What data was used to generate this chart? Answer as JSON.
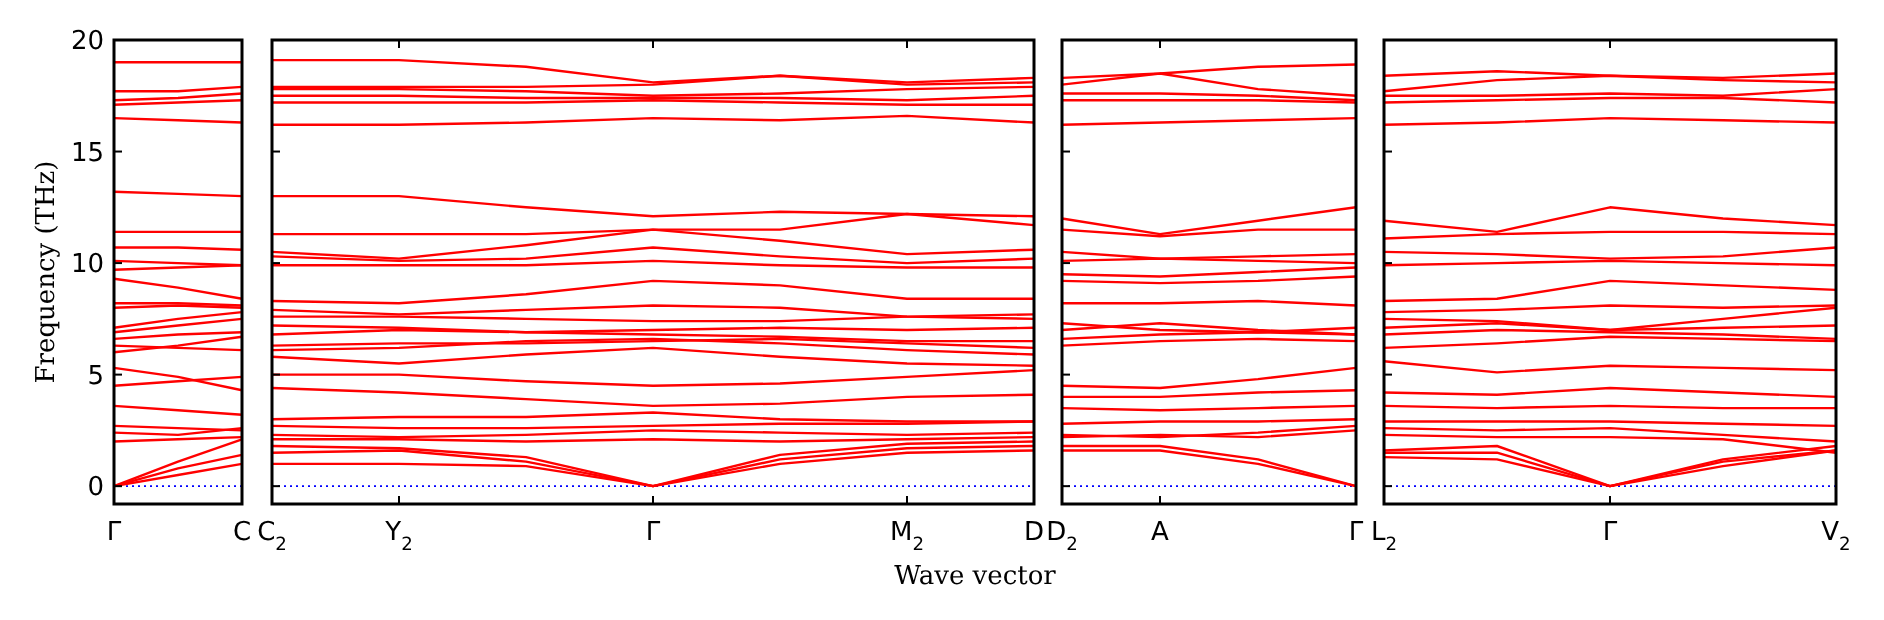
{
  "chart_data": [
    {
      "type": "line",
      "ylabel": "Frequency (THz)",
      "ylim": [
        -0.8,
        20
      ],
      "yticks": [
        0,
        5,
        10,
        15,
        20
      ],
      "categories": [
        "Γ",
        null,
        "C"
      ],
      "grid": false,
      "line_style": "solid",
      "ref_lines": [
        {
          "axis": "y",
          "value": 0,
          "label": null,
          "color": "#0000ff",
          "line_style": "dotted"
        }
      ],
      "series": [
        {
          "color": "#ff0000",
          "values": [
            0,
            0.5,
            1.0
          ]
        },
        {
          "color": "#ff0000",
          "values": [
            0,
            0.8,
            1.4
          ]
        },
        {
          "color": "#ff0000",
          "values": [
            0,
            1.1,
            2.1
          ]
        },
        {
          "color": "#ff0000",
          "values": [
            2.0,
            2.1,
            2.2
          ]
        },
        {
          "color": "#ff0000",
          "values": [
            2.4,
            2.3,
            2.6
          ]
        },
        {
          "color": "#ff0000",
          "values": [
            2.7,
            2.6,
            2.5
          ]
        },
        {
          "color": "#ff0000",
          "values": [
            3.6,
            3.4,
            3.2
          ]
        },
        {
          "color": "#ff0000",
          "values": [
            4.5,
            4.7,
            4.9
          ]
        },
        {
          "color": "#ff0000",
          "values": [
            5.3,
            4.9,
            4.3
          ]
        },
        {
          "color": "#ff0000",
          "values": [
            6.0,
            6.3,
            6.7
          ]
        },
        {
          "color": "#ff0000",
          "values": [
            6.3,
            6.2,
            6.1
          ]
        },
        {
          "color": "#ff0000",
          "values": [
            6.6,
            6.8,
            6.9
          ]
        },
        {
          "color": "#ff0000",
          "values": [
            6.9,
            7.2,
            7.5
          ]
        },
        {
          "color": "#ff0000",
          "values": [
            7.1,
            7.5,
            7.8
          ]
        },
        {
          "color": "#ff0000",
          "values": [
            8.0,
            8.1,
            8.0
          ]
        },
        {
          "color": "#ff0000",
          "values": [
            8.2,
            8.2,
            8.1
          ]
        },
        {
          "color": "#ff0000",
          "values": [
            9.3,
            8.9,
            8.4
          ]
        },
        {
          "color": "#ff0000",
          "values": [
            9.7,
            9.8,
            9.9
          ]
        },
        {
          "color": "#ff0000",
          "values": [
            10.1,
            10.0,
            9.9
          ]
        },
        {
          "color": "#ff0000",
          "values": [
            10.7,
            10.7,
            10.6
          ]
        },
        {
          "color": "#ff0000",
          "values": [
            11.4,
            11.4,
            11.4
          ]
        },
        {
          "color": "#ff0000",
          "values": [
            13.2,
            13.1,
            13.0
          ]
        },
        {
          "color": "#ff0000",
          "values": [
            16.5,
            16.4,
            16.3
          ]
        },
        {
          "color": "#ff0000",
          "values": [
            17.1,
            17.2,
            17.3
          ]
        },
        {
          "color": "#ff0000",
          "values": [
            17.3,
            17.4,
            17.6
          ]
        },
        {
          "color": "#ff0000",
          "values": [
            17.7,
            17.7,
            17.9
          ]
        },
        {
          "color": "#ff0000",
          "values": [
            19.0,
            19.0,
            19.0
          ]
        }
      ]
    },
    {
      "type": "line",
      "xlabel": "Wave vector",
      "ylim": [
        -0.8,
        20
      ],
      "yticks": [
        0,
        5,
        10,
        15,
        20
      ],
      "categories": [
        "C$_{2}$",
        "Y$_{2}$",
        null,
        "Γ",
        null,
        "M$_{2}$",
        "D"
      ],
      "tick_labels": "x",
      "grid": false,
      "line_style": "solid",
      "ref_lines": [
        {
          "axis": "y",
          "value": 0,
          "label": null,
          "color": "#0000ff",
          "line_style": "dotted"
        }
      ],
      "series": [
        {
          "color": "#ff0000",
          "values": [
            1.0,
            1.0,
            0.9,
            0.0,
            1.0,
            1.5,
            1.6
          ]
        },
        {
          "color": "#ff0000",
          "values": [
            1.5,
            1.6,
            1.1,
            0.0,
            1.2,
            1.7,
            1.8
          ]
        },
        {
          "color": "#ff0000",
          "values": [
            1.8,
            1.7,
            1.3,
            0.0,
            1.4,
            1.9,
            2.0
          ]
        },
        {
          "color": "#ff0000",
          "values": [
            2.1,
            2.1,
            2.0,
            2.1,
            2.0,
            2.1,
            2.2
          ]
        },
        {
          "color": "#ff0000",
          "values": [
            2.3,
            2.2,
            2.3,
            2.5,
            2.4,
            2.3,
            2.4
          ]
        },
        {
          "color": "#ff0000",
          "values": [
            2.7,
            2.6,
            2.6,
            2.7,
            2.8,
            2.8,
            2.9
          ]
        },
        {
          "color": "#ff0000",
          "values": [
            3.0,
            3.1,
            3.1,
            3.3,
            3.0,
            2.9,
            2.9
          ]
        },
        {
          "color": "#ff0000",
          "values": [
            4.4,
            4.2,
            3.9,
            3.6,
            3.7,
            4.0,
            4.1
          ]
        },
        {
          "color": "#ff0000",
          "values": [
            5.0,
            5.0,
            4.7,
            4.5,
            4.6,
            4.9,
            5.2
          ]
        },
        {
          "color": "#ff0000",
          "values": [
            5.8,
            5.5,
            5.9,
            6.2,
            5.8,
            5.5,
            5.4
          ]
        },
        {
          "color": "#ff0000",
          "values": [
            6.1,
            6.2,
            6.5,
            6.6,
            6.4,
            6.1,
            5.9
          ]
        },
        {
          "color": "#ff0000",
          "values": [
            6.3,
            6.4,
            6.4,
            6.5,
            6.6,
            6.4,
            6.2
          ]
        },
        {
          "color": "#ff0000",
          "values": [
            6.8,
            7.0,
            6.9,
            6.8,
            6.7,
            6.5,
            6.5
          ]
        },
        {
          "color": "#ff0000",
          "values": [
            7.2,
            7.1,
            6.9,
            7.0,
            7.1,
            7.0,
            7.1
          ]
        },
        {
          "color": "#ff0000",
          "values": [
            7.6,
            7.6,
            7.5,
            7.4,
            7.4,
            7.6,
            7.7
          ]
        },
        {
          "color": "#ff0000",
          "values": [
            7.9,
            7.7,
            7.9,
            8.1,
            8.0,
            7.6,
            7.5
          ]
        },
        {
          "color": "#ff0000",
          "values": [
            8.3,
            8.2,
            8.6,
            9.2,
            9.0,
            8.4,
            8.4
          ]
        },
        {
          "color": "#ff0000",
          "values": [
            9.9,
            9.9,
            9.9,
            10.1,
            9.9,
            9.8,
            9.8
          ]
        },
        {
          "color": "#ff0000",
          "values": [
            10.3,
            10.1,
            10.2,
            10.7,
            10.3,
            10.0,
            10.2
          ]
        },
        {
          "color": "#ff0000",
          "values": [
            10.5,
            10.2,
            10.8,
            11.5,
            11.0,
            10.4,
            10.6
          ]
        },
        {
          "color": "#ff0000",
          "values": [
            11.3,
            11.3,
            11.3,
            11.5,
            11.5,
            12.2,
            11.7
          ]
        },
        {
          "color": "#ff0000",
          "values": [
            13.0,
            13.0,
            12.5,
            12.1,
            12.3,
            12.2,
            12.1
          ]
        },
        {
          "color": "#ff0000",
          "values": [
            16.2,
            16.2,
            16.3,
            16.5,
            16.4,
            16.6,
            16.3
          ]
        },
        {
          "color": "#ff0000",
          "values": [
            17.2,
            17.2,
            17.2,
            17.3,
            17.2,
            17.1,
            17.1
          ]
        },
        {
          "color": "#ff0000",
          "values": [
            17.5,
            17.5,
            17.4,
            17.4,
            17.4,
            17.3,
            17.5
          ]
        },
        {
          "color": "#ff0000",
          "values": [
            17.8,
            17.8,
            17.7,
            17.5,
            17.6,
            17.8,
            17.9
          ]
        },
        {
          "color": "#ff0000",
          "values": [
            17.9,
            17.9,
            17.9,
            18.0,
            18.4,
            18.1,
            18.3
          ]
        },
        {
          "color": "#ff0000",
          "values": [
            19.1,
            19.1,
            18.8,
            18.1,
            18.4,
            18.0,
            18.1
          ]
        }
      ]
    },
    {
      "type": "line",
      "ylim": [
        -0.8,
        20
      ],
      "yticks": [
        0,
        5,
        10,
        15,
        20
      ],
      "categories": [
        "D$_{2}$",
        "A",
        null,
        "Γ"
      ],
      "tick_labels": "x",
      "grid": false,
      "line_style": "solid",
      "ref_lines": [
        {
          "axis": "y",
          "value": 0,
          "label": null,
          "color": "#0000ff",
          "line_style": "dotted"
        }
      ],
      "series": [
        {
          "color": "#ff0000",
          "values": [
            1.6,
            1.6,
            1.0,
            0.0
          ]
        },
        {
          "color": "#ff0000",
          "values": [
            1.8,
            1.8,
            1.2,
            0.0
          ]
        },
        {
          "color": "#ff0000",
          "values": [
            2.2,
            2.3,
            2.2,
            2.5
          ]
        },
        {
          "color": "#ff0000",
          "values": [
            2.3,
            2.2,
            2.4,
            2.7
          ]
        },
        {
          "color": "#ff0000",
          "values": [
            2.8,
            2.9,
            2.9,
            3.0
          ]
        },
        {
          "color": "#ff0000",
          "values": [
            3.5,
            3.4,
            3.5,
            3.6
          ]
        },
        {
          "color": "#ff0000",
          "values": [
            4.0,
            4.0,
            4.2,
            4.3
          ]
        },
        {
          "color": "#ff0000",
          "values": [
            4.5,
            4.4,
            4.8,
            5.3
          ]
        },
        {
          "color": "#ff0000",
          "values": [
            6.3,
            6.5,
            6.6,
            6.5
          ]
        },
        {
          "color": "#ff0000",
          "values": [
            6.6,
            6.8,
            6.9,
            6.8
          ]
        },
        {
          "color": "#ff0000",
          "values": [
            7.0,
            7.3,
            7.0,
            6.8
          ]
        },
        {
          "color": "#ff0000",
          "values": [
            7.3,
            7.0,
            6.9,
            7.1
          ]
        },
        {
          "color": "#ff0000",
          "values": [
            8.2,
            8.2,
            8.3,
            8.1
          ]
        },
        {
          "color": "#ff0000",
          "values": [
            9.2,
            9.1,
            9.2,
            9.4
          ]
        },
        {
          "color": "#ff0000",
          "values": [
            9.5,
            9.4,
            9.6,
            9.8
          ]
        },
        {
          "color": "#ff0000",
          "values": [
            10.1,
            10.2,
            10.1,
            10.0
          ]
        },
        {
          "color": "#ff0000",
          "values": [
            10.5,
            10.2,
            10.3,
            10.4
          ]
        },
        {
          "color": "#ff0000",
          "values": [
            11.5,
            11.2,
            11.5,
            11.5
          ]
        },
        {
          "color": "#ff0000",
          "values": [
            12.0,
            11.3,
            11.9,
            12.5
          ]
        },
        {
          "color": "#ff0000",
          "values": [
            16.2,
            16.3,
            16.4,
            16.5
          ]
        },
        {
          "color": "#ff0000",
          "values": [
            17.3,
            17.3,
            17.3,
            17.2
          ]
        },
        {
          "color": "#ff0000",
          "values": [
            17.6,
            17.6,
            17.5,
            17.3
          ]
        },
        {
          "color": "#ff0000",
          "values": [
            18.0,
            18.5,
            17.8,
            17.5
          ]
        },
        {
          "color": "#ff0000",
          "values": [
            18.3,
            18.5,
            18.8,
            18.9
          ]
        }
      ]
    },
    {
      "type": "line",
      "ylim": [
        -0.8,
        20
      ],
      "yticks": [
        0,
        5,
        10,
        15,
        20
      ],
      "categories": [
        "L$_{2}$",
        null,
        "Γ",
        null,
        "V$_{2}$"
      ],
      "tick_labels": "x",
      "grid": false,
      "line_style": "solid",
      "ref_lines": [
        {
          "axis": "y",
          "value": 0,
          "label": null,
          "color": "#0000ff",
          "line_style": "dotted"
        }
      ],
      "series": [
        {
          "color": "#ff0000",
          "values": [
            1.3,
            1.2,
            0.0,
            0.9,
            1.6
          ]
        },
        {
          "color": "#ff0000",
          "values": [
            1.5,
            1.5,
            0.0,
            1.1,
            1.6
          ]
        },
        {
          "color": "#ff0000",
          "values": [
            1.6,
            1.8,
            0.0,
            1.2,
            1.8
          ]
        },
        {
          "color": "#ff0000",
          "values": [
            2.3,
            2.2,
            2.2,
            2.1,
            1.5
          ]
        },
        {
          "color": "#ff0000",
          "values": [
            2.6,
            2.5,
            2.6,
            2.3,
            2.0
          ]
        },
        {
          "color": "#ff0000",
          "values": [
            2.9,
            2.9,
            2.9,
            2.8,
            2.7
          ]
        },
        {
          "color": "#ff0000",
          "values": [
            3.6,
            3.5,
            3.6,
            3.5,
            3.5
          ]
        },
        {
          "color": "#ff0000",
          "values": [
            4.2,
            4.1,
            4.4,
            4.2,
            4.0
          ]
        },
        {
          "color": "#ff0000",
          "values": [
            5.6,
            5.1,
            5.4,
            5.3,
            5.2
          ]
        },
        {
          "color": "#ff0000",
          "values": [
            6.2,
            6.4,
            6.7,
            6.6,
            6.5
          ]
        },
        {
          "color": "#ff0000",
          "values": [
            6.8,
            7.0,
            6.9,
            6.8,
            6.6
          ]
        },
        {
          "color": "#ff0000",
          "values": [
            7.1,
            7.3,
            7.0,
            7.1,
            7.2
          ]
        },
        {
          "color": "#ff0000",
          "values": [
            7.5,
            7.4,
            7.0,
            7.5,
            8.0
          ]
        },
        {
          "color": "#ff0000",
          "values": [
            7.8,
            7.9,
            8.1,
            8.0,
            8.1
          ]
        },
        {
          "color": "#ff0000",
          "values": [
            8.3,
            8.4,
            9.2,
            9.0,
            8.8
          ]
        },
        {
          "color": "#ff0000",
          "values": [
            9.9,
            10.0,
            10.1,
            10.0,
            9.9
          ]
        },
        {
          "color": "#ff0000",
          "values": [
            10.5,
            10.4,
            10.2,
            10.3,
            10.7
          ]
        },
        {
          "color": "#ff0000",
          "values": [
            11.1,
            11.3,
            11.4,
            11.4,
            11.3
          ]
        },
        {
          "color": "#ff0000",
          "values": [
            11.9,
            11.4,
            12.5,
            12.0,
            11.7
          ]
        },
        {
          "color": "#ff0000",
          "values": [
            16.2,
            16.3,
            16.5,
            16.4,
            16.3
          ]
        },
        {
          "color": "#ff0000",
          "values": [
            17.2,
            17.3,
            17.4,
            17.4,
            17.2
          ]
        },
        {
          "color": "#ff0000",
          "values": [
            17.5,
            17.5,
            17.6,
            17.5,
            17.8
          ]
        },
        {
          "color": "#ff0000",
          "values": [
            17.7,
            18.2,
            18.4,
            18.2,
            18.1
          ]
        },
        {
          "color": "#ff0000",
          "values": [
            18.4,
            18.6,
            18.4,
            18.3,
            18.5
          ]
        }
      ]
    }
  ]
}
